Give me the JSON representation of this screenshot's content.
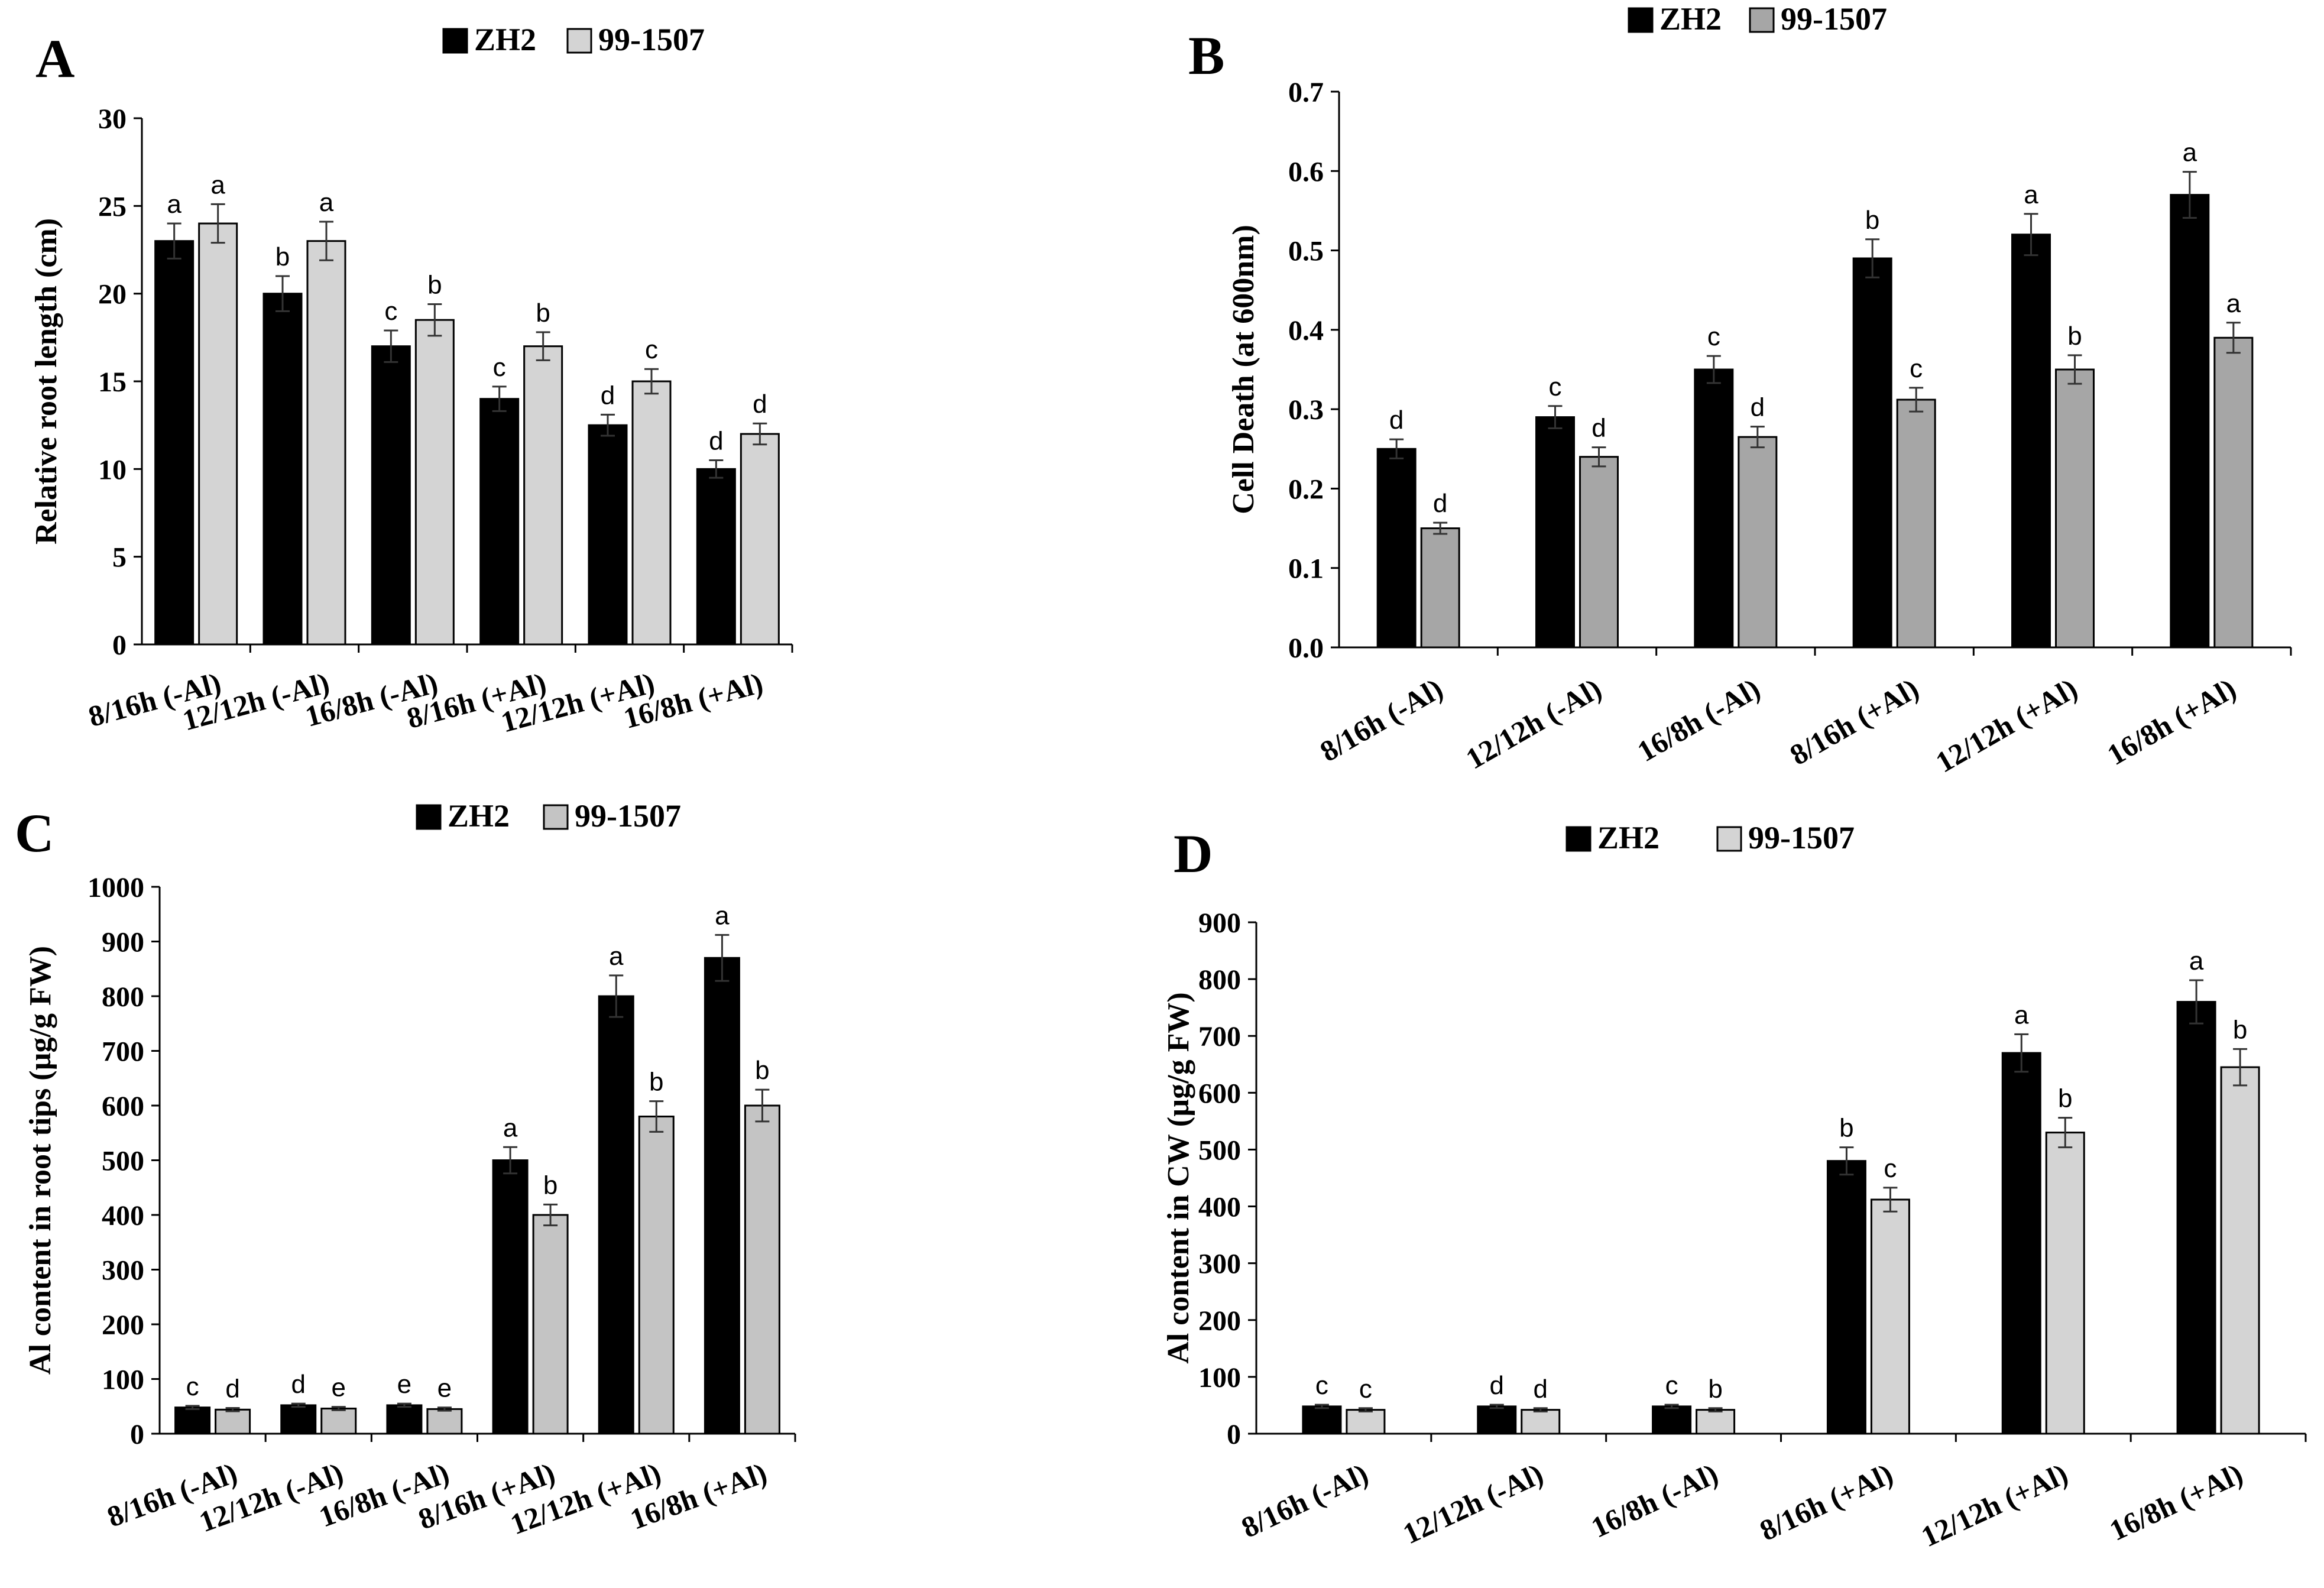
{
  "chart_data": [
    {
      "type": "bar",
      "panel": "A",
      "ylabel": "Relative root length (cm)",
      "ylim": [
        0,
        30
      ],
      "ytick_step": 5,
      "categories": [
        "8/16h (-Al)",
        "12/12h (-Al)",
        "16/8h (-Al)",
        "8/16h (+Al)",
        "12/12h (+Al)",
        "16/8h (+Al)"
      ],
      "series": [
        {
          "name": "ZH2",
          "color": "#000000",
          "values": [
            23,
            20,
            17,
            14,
            12.5,
            10
          ],
          "errors": [
            1,
            1,
            0.9,
            0.7,
            0.6,
            0.5
          ],
          "letters": [
            "a",
            "b",
            "c",
            "c",
            "d",
            "d"
          ]
        },
        {
          "name": "99-1507",
          "color": "#d4d4d4",
          "values": [
            24,
            23,
            18.5,
            17,
            15,
            12
          ],
          "errors": [
            1.1,
            1.1,
            0.9,
            0.8,
            0.7,
            0.6
          ],
          "letters": [
            "a",
            "a",
            "b",
            "b",
            "c",
            "d"
          ]
        }
      ]
    },
    {
      "type": "bar",
      "panel": "B",
      "ylabel": "Cell Death (at 600nm)",
      "ylim": [
        0,
        0.7
      ],
      "ytick_step": 0.1,
      "categories": [
        "8/16h (-Al)",
        "12/12h (-Al)",
        "16/8h (-Al)",
        "8/16h (+Al)",
        "12/12h (+Al)",
        "16/8h (+Al)"
      ],
      "series": [
        {
          "name": "ZH2",
          "color": "#000000",
          "values": [
            0.25,
            0.29,
            0.35,
            0.49,
            0.52,
            0.57
          ],
          "errors": [
            0.012,
            0.014,
            0.017,
            0.024,
            0.026,
            0.029
          ],
          "letters": [
            "d",
            "c",
            "c",
            "b",
            "a",
            "a"
          ]
        },
        {
          "name": "99-1507",
          "color": "#a6a6a6",
          "values": [
            0.15,
            0.24,
            0.265,
            0.312,
            0.35,
            0.39
          ],
          "errors": [
            0.007,
            0.012,
            0.013,
            0.015,
            0.018,
            0.019
          ],
          "letters": [
            "d",
            "d",
            "d",
            "c",
            "b",
            "a"
          ]
        }
      ]
    },
    {
      "type": "bar",
      "panel": "C",
      "ylabel": "Al content in root tips (µg/g FW)",
      "ylim": [
        0,
        1000
      ],
      "ytick_step": 100,
      "categories": [
        "8/16h (-Al)",
        "12/12h (-Al)",
        "16/8h (-Al)",
        "8/16h (+Al)",
        "12/12h (+Al)",
        "16/8h (+Al)"
      ],
      "series": [
        {
          "name": "ZH2",
          "color": "#000000",
          "values": [
            48,
            52,
            52,
            500,
            800,
            870
          ],
          "errors": [
            3,
            3,
            3,
            24,
            38,
            42
          ],
          "letters": [
            "c",
            "d",
            "e",
            "a",
            "a",
            "a"
          ]
        },
        {
          "name": "99-1507",
          "color": "#c4c4c4",
          "values": [
            44,
            46,
            45,
            400,
            580,
            600
          ],
          "errors": [
            3,
            3,
            3,
            19,
            28,
            29
          ],
          "letters": [
            "d",
            "e",
            "e",
            "b",
            "b",
            "b"
          ]
        }
      ]
    },
    {
      "type": "bar",
      "panel": "D",
      "ylabel": "Al content in CW (µg/g FW)",
      "ylim": [
        0,
        900
      ],
      "ytick_step": 100,
      "categories": [
        "8/16h (-Al)",
        "12/12h (-Al)",
        "16/8h (-Al)",
        "8/16h (+Al)",
        "12/12h (+Al)",
        "16/8h (+Al)"
      ],
      "series": [
        {
          "name": "ZH2",
          "color": "#000000",
          "values": [
            48,
            48,
            48,
            480,
            670,
            760
          ],
          "errors": [
            3,
            3,
            3,
            24,
            33,
            38
          ],
          "letters": [
            "c",
            "d",
            "c",
            "b",
            "a",
            "a"
          ]
        },
        {
          "name": "99-1507",
          "color": "#d4d4d4",
          "values": [
            42,
            42,
            42,
            412,
            530,
            645
          ],
          "errors": [
            3,
            3,
            3,
            21,
            26,
            32
          ],
          "letters": [
            "c",
            "d",
            "b",
            "c",
            "b",
            "b"
          ]
        }
      ]
    }
  ]
}
